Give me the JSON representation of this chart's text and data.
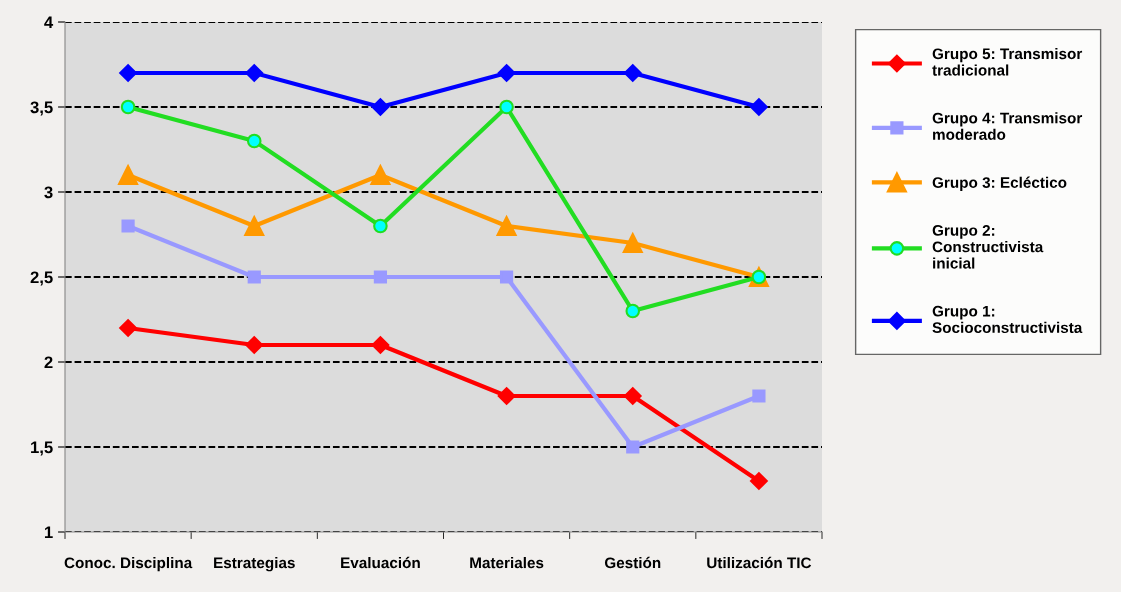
{
  "chart_data": {
    "type": "line",
    "categories": [
      "Conoc. Disciplina",
      "Estrategias",
      "Evaluación",
      "Materiales",
      "Gestión",
      "Utilización TIC"
    ],
    "series": [
      {
        "name": "Grupo 5: Transmisor tradicional",
        "color": "#ff0000",
        "marker": "diamond",
        "values": [
          2.2,
          2.1,
          2.1,
          1.8,
          1.8,
          1.3
        ]
      },
      {
        "name": "Grupo 4: Transmisor moderado",
        "color": "#9999ff",
        "marker": "square",
        "values": [
          2.8,
          2.5,
          2.5,
          2.5,
          1.5,
          1.8
        ]
      },
      {
        "name": "Grupo 3: Ecléctico",
        "color": "#ff9900",
        "marker": "triangle",
        "values": [
          3.1,
          2.8,
          3.1,
          2.8,
          2.7,
          2.5
        ]
      },
      {
        "name": "Grupo 2: Constructivista inicial",
        "color": "#22dd22",
        "marker": "circle",
        "values": [
          3.5,
          3.3,
          2.8,
          3.5,
          2.3,
          2.5
        ]
      },
      {
        "name": "Grupo 1: Socioconstructivista",
        "color": "#0000ff",
        "marker": "diamond",
        "values": [
          3.7,
          3.7,
          3.5,
          3.7,
          3.7,
          3.5
        ]
      }
    ],
    "ylim": [
      1,
      4
    ],
    "yticks": [
      {
        "value": 1,
        "label": "1"
      },
      {
        "value": 1.5,
        "label": "1,5"
      },
      {
        "value": 2,
        "label": "2"
      },
      {
        "value": 2.5,
        "label": "2,5"
      },
      {
        "value": 3,
        "label": "3"
      },
      {
        "value": 3.5,
        "label": "3,5"
      },
      {
        "value": 4,
        "label": "4"
      }
    ],
    "grid": "y",
    "legend": "right",
    "line_style": "solid"
  }
}
